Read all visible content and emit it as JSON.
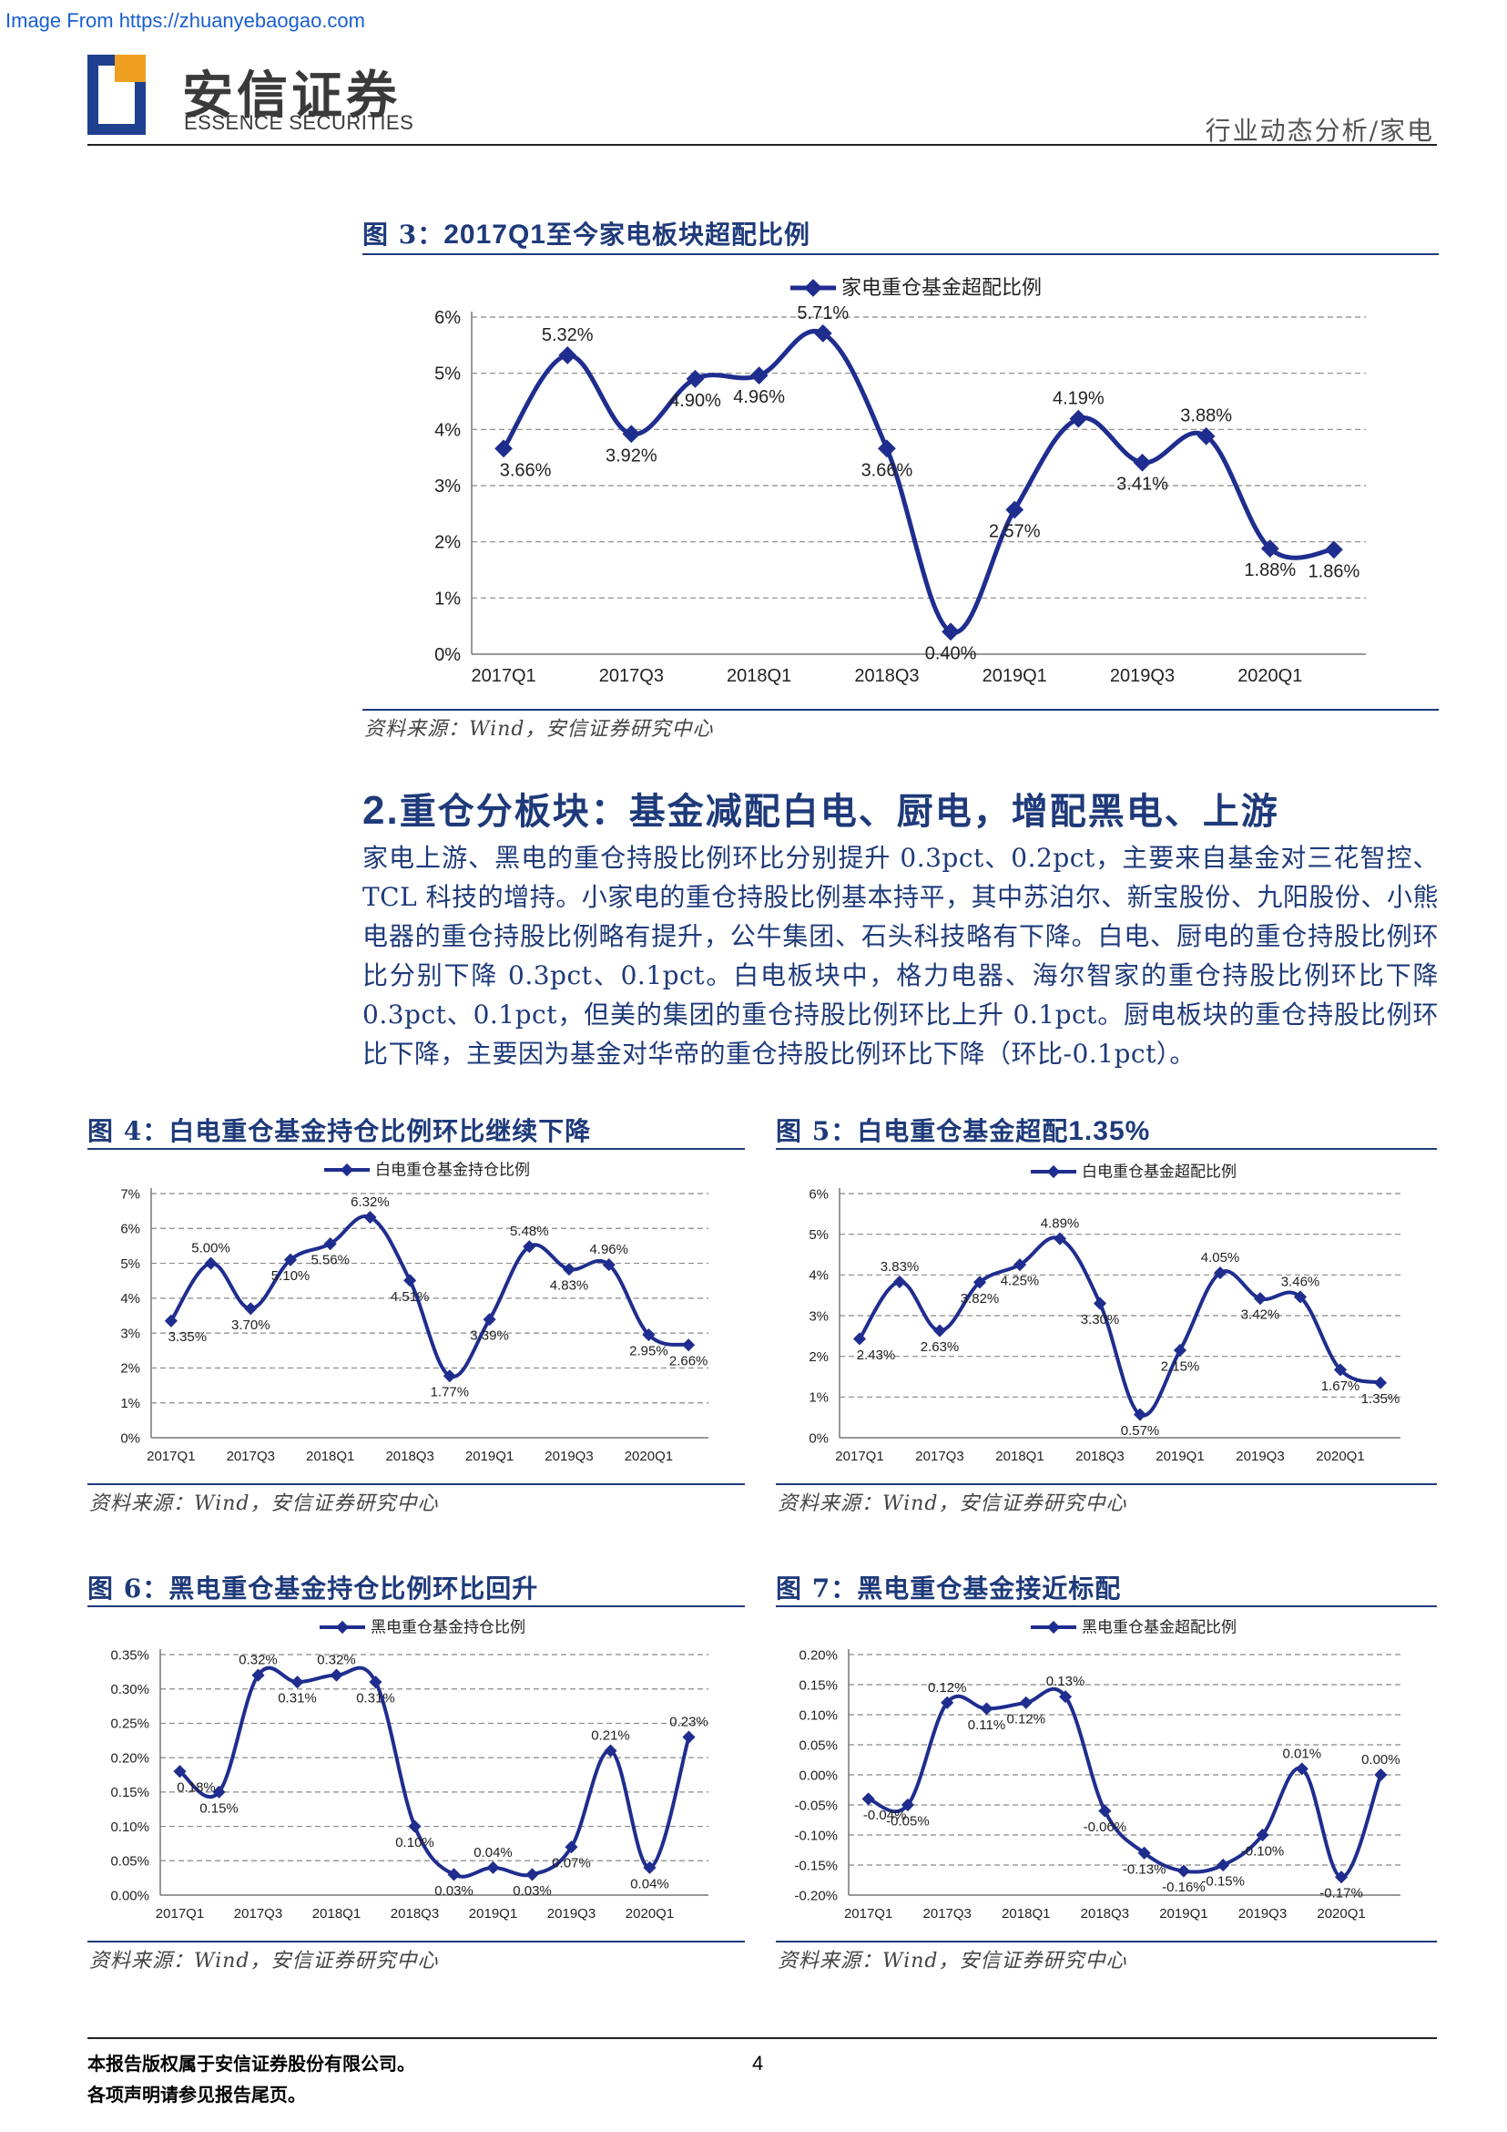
{
  "watermark": "Image From https://zhuanyebaogao.com",
  "logo": {
    "cn": "安信证券",
    "en": "ESSENCE SECURITIES"
  },
  "header_right": "行业动态分析/家电",
  "source_note": "资料来源：Wind，安信证券研究中心",
  "section": {
    "num": "2.",
    "title": "重仓分板块：基金减配白电、厨电，增配黑电、上游",
    "paragraph": "家电上游、黑电的重仓持股比例环比分别提升 0.3pct、0.2pct，主要来自基金对三花智控、TCL 科技的增持。小家电的重仓持股比例基本持平，其中苏泊尔、新宝股份、九阳股份、小熊电器的重仓持股比例略有提升，公牛集团、石头科技略有下降。白电、厨电的重仓持股比例环比分别下降 0.3pct、0.1pct。白电板块中，格力电器、海尔智家的重仓持股比例环比下降 0.3pct、0.1pct，但美的集团的重仓持股比例环比上升 0.1pct。厨电板块的重仓持股比例环比下降，主要因为基金对华帝的重仓持股比例环比下降（环比-0.1pct）。"
  },
  "footer": {
    "line1": "本报告版权属于安信证券股份有限公司。",
    "line2": "各项声明请参见报告尾页。",
    "page": "4"
  },
  "colors": {
    "line": "#1f2d8f",
    "title": "#1e3a7a"
  },
  "chart_data": [
    {
      "id": "fig3",
      "fig": "图 3：",
      "title_num": "2017Q1",
      "title": "至今家电板块超配比例",
      "type": "line",
      "series_name": "家电重仓基金超配比例",
      "x": [
        "2017Q1",
        "2017Q2",
        "2017Q3",
        "2017Q4",
        "2018Q1",
        "2018Q2",
        "2018Q3",
        "2018Q4",
        "2019Q1",
        "2019Q2",
        "2019Q3",
        "2019Q4",
        "2020Q1",
        "2020Q2"
      ],
      "x_ticks": [
        "2017Q1",
        "2017Q3",
        "2018Q1",
        "2018Q3",
        "2019Q1",
        "2019Q3",
        "2020Q1"
      ],
      "values": [
        3.66,
        5.32,
        3.92,
        4.9,
        4.96,
        5.71,
        3.66,
        0.4,
        2.57,
        4.19,
        3.41,
        3.88,
        1.88,
        1.86
      ],
      "labels": [
        "3.66%",
        "5.32%",
        "3.92%",
        "4.90%",
        "4.96%",
        "5.71%",
        "3.66%",
        "0.40%",
        "2.57%",
        "4.19%",
        "3.41%",
        "3.88%",
        "1.88%",
        "1.86%"
      ],
      "y_ticks": [
        "0%",
        "1%",
        "2%",
        "3%",
        "4%",
        "5%",
        "6%"
      ],
      "ylim": [
        0,
        6
      ]
    },
    {
      "id": "fig4",
      "fig": "图 4：",
      "title_num": "",
      "title": "白电重仓基金持仓比例环比继续下降",
      "type": "line",
      "series_name": "白电重仓基金持仓比例",
      "x": [
        "2017Q1",
        "2017Q2",
        "2017Q3",
        "2017Q4",
        "2018Q1",
        "2018Q2",
        "2018Q3",
        "2018Q4",
        "2019Q1",
        "2019Q2",
        "2019Q3",
        "2019Q4",
        "2020Q1",
        "2020Q2"
      ],
      "x_ticks": [
        "2017Q1",
        "2017Q3",
        "2018Q1",
        "2018Q3",
        "2019Q1",
        "2019Q3",
        "2020Q1"
      ],
      "values": [
        3.35,
        5.0,
        3.7,
        5.1,
        5.56,
        6.32,
        4.51,
        1.77,
        3.39,
        5.48,
        4.83,
        4.96,
        2.95,
        2.66
      ],
      "labels": [
        "3.35%",
        "5.00%",
        "3.70%",
        "5.10%",
        "5.56%",
        "6.32%",
        "4.51%",
        "1.77%",
        "3.39%",
        "5.48%",
        "4.83%",
        "4.96%",
        "2.95%",
        "2.66%"
      ],
      "y_ticks": [
        "0%",
        "1%",
        "2%",
        "3%",
        "4%",
        "5%",
        "6%",
        "7%"
      ],
      "ylim": [
        0,
        7
      ]
    },
    {
      "id": "fig5",
      "fig": "图 5：",
      "title_num": "1.35%",
      "title": "白电重仓基金超配",
      "type": "line",
      "series_name": "白电重仓基金超配比例",
      "x": [
        "2017Q1",
        "2017Q2",
        "2017Q3",
        "2017Q4",
        "2018Q1",
        "2018Q2",
        "2018Q3",
        "2018Q4",
        "2019Q1",
        "2019Q2",
        "2019Q3",
        "2019Q4",
        "2020Q1",
        "2020Q2"
      ],
      "x_ticks": [
        "2017Q1",
        "2017Q3",
        "2018Q1",
        "2018Q3",
        "2019Q1",
        "2019Q3",
        "2020Q1"
      ],
      "values": [
        2.43,
        3.83,
        2.63,
        3.82,
        4.25,
        4.89,
        3.3,
        0.57,
        2.15,
        4.05,
        3.42,
        3.46,
        1.67,
        1.35
      ],
      "labels": [
        "2.43%",
        "3.83%",
        "2.63%",
        "3.82%",
        "4.25%",
        "4.89%",
        "3.30%",
        "0.57%",
        "2.15%",
        "4.05%",
        "3.42%",
        "3.46%",
        "1.67%",
        "1.35%"
      ],
      "y_ticks": [
        "0%",
        "1%",
        "2%",
        "3%",
        "4%",
        "5%",
        "6%"
      ],
      "ylim": [
        0,
        6
      ]
    },
    {
      "id": "fig6",
      "fig": "图 6：",
      "title_num": "",
      "title": "黑电重仓基金持仓比例环比回升",
      "type": "line",
      "series_name": "黑电重仓基金持仓比例",
      "x": [
        "2017Q1",
        "2017Q2",
        "2017Q3",
        "2017Q4",
        "2018Q1",
        "2018Q2",
        "2018Q3",
        "2018Q4",
        "2019Q1",
        "2019Q2",
        "2019Q3",
        "2019Q4",
        "2020Q1",
        "2020Q2"
      ],
      "x_ticks": [
        "2017Q1",
        "2017Q3",
        "2018Q1",
        "2018Q3",
        "2019Q1",
        "2019Q3",
        "2020Q1"
      ],
      "values": [
        0.18,
        0.15,
        0.32,
        0.31,
        0.32,
        0.31,
        0.1,
        0.03,
        0.04,
        0.03,
        0.07,
        0.21,
        0.04,
        0.23
      ],
      "labels": [
        "0.18%",
        "0.15%",
        "0.32%",
        "0.31%",
        "0.32%",
        "0.31%",
        "0.10%",
        "0.03%",
        "0.04%",
        "0.03%",
        "0.07%",
        "0.21%",
        "0.04%",
        "0.23%"
      ],
      "y_ticks": [
        "0.00%",
        "0.05%",
        "0.10%",
        "0.15%",
        "0.20%",
        "0.25%",
        "0.30%",
        "0.35%"
      ],
      "ylim": [
        0,
        0.35
      ]
    },
    {
      "id": "fig7",
      "fig": "图 7：",
      "title_num": "",
      "title": "黑电重仓基金接近标配",
      "type": "line",
      "series_name": "黑电重仓基金超配比例",
      "x": [
        "2017Q1",
        "2017Q2",
        "2017Q3",
        "2017Q4",
        "2018Q1",
        "2018Q2",
        "2018Q3",
        "2018Q4",
        "2019Q1",
        "2019Q2",
        "2019Q3",
        "2019Q4",
        "2020Q1",
        "2020Q2"
      ],
      "x_ticks": [
        "2017Q1",
        "2017Q3",
        "2018Q1",
        "2018Q3",
        "2019Q1",
        "2019Q3",
        "2020Q1"
      ],
      "values": [
        -0.04,
        -0.05,
        0.12,
        0.11,
        0.12,
        0.13,
        -0.06,
        -0.13,
        -0.16,
        -0.15,
        -0.1,
        0.01,
        -0.17,
        0.0
      ],
      "labels": [
        "-0.04%",
        "-0.05%",
        "0.12%",
        "0.11%",
        "0.12%",
        "0.13%",
        "-0.06%",
        "-0.13%",
        "-0.16%",
        "-0.15%",
        "-0.10%",
        "0.01%",
        "-0.17%",
        "0.00%"
      ],
      "y_ticks": [
        "-0.20%",
        "-0.15%",
        "-0.10%",
        "-0.05%",
        "0.00%",
        "0.05%",
        "0.10%",
        "0.15%",
        "0.20%"
      ],
      "ylim": [
        -0.2,
        0.2
      ]
    }
  ]
}
